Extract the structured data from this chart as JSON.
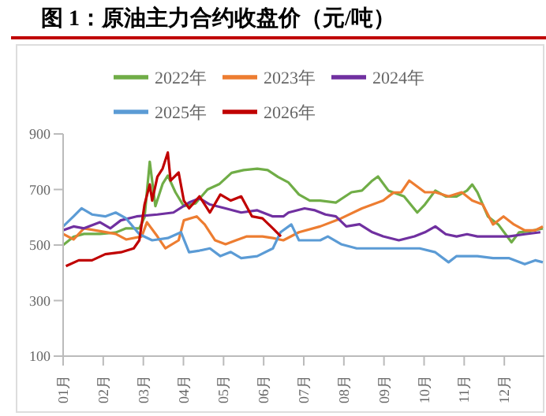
{
  "chart_data": {
    "type": "line",
    "title": "图 1：原油主力合约收盘价（元/吨）",
    "xlim": [
      1,
      13
    ],
    "xticks": [
      {
        "value": 1,
        "label": "01月"
      },
      {
        "value": 2,
        "label": "02月"
      },
      {
        "value": 3,
        "label": "03月"
      },
      {
        "value": 4,
        "label": "04月"
      },
      {
        "value": 5,
        "label": "05月"
      },
      {
        "value": 6,
        "label": "06月"
      },
      {
        "value": 7,
        "label": "07月"
      },
      {
        "value": 8,
        "label": "08月"
      },
      {
        "value": 9,
        "label": "09月"
      },
      {
        "value": 10,
        "label": "10月"
      },
      {
        "value": 11,
        "label": "11月"
      },
      {
        "value": 12,
        "label": "12月"
      }
    ],
    "ylim": [
      100,
      900
    ],
    "yticks": [
      100,
      300,
      500,
      700,
      900
    ],
    "legend": "top",
    "series": [
      {
        "name": "2022年",
        "color": "#70ad47",
        "x": [
          1.0,
          1.26,
          1.52,
          1.92,
          2.31,
          2.57,
          2.9,
          3.03,
          3.16,
          3.3,
          3.48,
          3.61,
          3.8,
          4.01,
          4.3,
          4.6,
          4.9,
          5.2,
          5.5,
          5.84,
          6.1,
          6.36,
          6.62,
          6.88,
          7.15,
          7.41,
          7.8,
          8.19,
          8.45,
          8.71,
          8.85,
          9.11,
          9.5,
          9.83,
          10.02,
          10.28,
          10.54,
          10.81,
          11.07,
          11.2,
          11.33,
          11.59,
          11.85,
          12.18,
          12.37,
          12.64,
          12.96
        ],
        "values": [
          500,
          530,
          540,
          540,
          545,
          560,
          560,
          600,
          800,
          640,
          720,
          750,
          690,
          640,
          650,
          700,
          720,
          760,
          770,
          775,
          770,
          745,
          725,
          682,
          660,
          660,
          653,
          690,
          696,
          732,
          747,
          696,
          675,
          617,
          646,
          696,
          675,
          675,
          696,
          718,
          690,
          603,
          574,
          510,
          546,
          550,
          560
        ]
      },
      {
        "name": "2023年",
        "color": "#ed7d31",
        "x": [
          1.0,
          1.26,
          1.52,
          1.92,
          2.31,
          2.57,
          2.96,
          3.09,
          3.35,
          3.55,
          3.88,
          4.01,
          4.33,
          4.53,
          4.79,
          5.05,
          5.31,
          5.58,
          5.97,
          6.23,
          6.49,
          6.88,
          7.41,
          7.93,
          8.45,
          8.98,
          9.24,
          9.43,
          9.63,
          10.02,
          10.28,
          10.61,
          10.94,
          11.2,
          11.46,
          11.72,
          11.98,
          12.24,
          12.51,
          12.77,
          12.96
        ],
        "values": [
          540,
          520,
          560,
          550,
          540,
          520,
          531,
          582,
          531,
          488,
          517,
          589,
          603,
          574,
          517,
          503,
          517,
          531,
          531,
          525,
          517,
          546,
          567,
          596,
          632,
          660,
          689,
          690,
          732,
          690,
          690,
          675,
          690,
          660,
          646,
          574,
          603,
          574,
          553,
          553,
          567
        ]
      },
      {
        "name": "2024年",
        "color": "#7030a0",
        "x": [
          1.0,
          1.26,
          1.52,
          1.92,
          2.18,
          2.44,
          2.83,
          3.35,
          3.75,
          4.14,
          4.4,
          4.66,
          5.05,
          5.44,
          5.84,
          6.23,
          6.49,
          6.62,
          7.02,
          7.28,
          7.54,
          7.8,
          8.06,
          8.39,
          8.71,
          8.98,
          9.37,
          9.76,
          10.02,
          10.28,
          10.54,
          10.81,
          11.07,
          11.33,
          11.72,
          12.11,
          12.51,
          12.9
        ],
        "values": [
          553,
          567,
          560,
          582,
          560,
          589,
          603,
          610,
          617,
          653,
          668,
          646,
          632,
          617,
          625,
          603,
          603,
          617,
          632,
          625,
          610,
          603,
          567,
          575,
          546,
          531,
          517,
          531,
          546,
          567,
          539,
          531,
          539,
          531,
          531,
          531,
          539,
          546
        ]
      },
      {
        "name": "2025年",
        "color": "#5b9bd5",
        "x": [
          1.0,
          1.26,
          1.46,
          1.72,
          2.05,
          2.31,
          2.57,
          2.9,
          3.22,
          3.61,
          3.94,
          4.14,
          4.4,
          4.66,
          4.92,
          5.18,
          5.44,
          5.84,
          6.23,
          6.42,
          6.69,
          6.88,
          7.41,
          7.6,
          7.93,
          8.32,
          8.71,
          9.11,
          9.5,
          9.89,
          10.28,
          10.61,
          10.81,
          11.33,
          11.72,
          12.11,
          12.51,
          12.77,
          12.96
        ],
        "values": [
          567,
          603,
          632,
          610,
          603,
          617,
          596,
          539,
          517,
          525,
          546,
          474,
          480,
          488,
          460,
          475,
          453,
          460,
          488,
          546,
          574,
          517,
          517,
          531,
          503,
          488,
          488,
          488,
          488,
          488,
          474,
          438,
          460,
          460,
          453,
          453,
          431,
          445,
          438
        ]
      },
      {
        "name": "2026年",
        "color": "#c00000",
        "x": [
          1.07,
          1.39,
          1.72,
          2.05,
          2.44,
          2.76,
          2.9,
          3.03,
          3.16,
          3.22,
          3.35,
          3.48,
          3.61,
          3.68,
          3.88,
          4.01,
          4.14,
          4.4,
          4.66,
          4.92,
          5.18,
          5.44,
          5.71,
          5.97,
          6.23,
          6.43
        ],
        "values": [
          424,
          445,
          445,
          467,
          474,
          488,
          517,
          646,
          718,
          660,
          746,
          775,
          833,
          732,
          761,
          660,
          632,
          675,
          617,
          682,
          660,
          675,
          603,
          596,
          560,
          531
        ]
      }
    ]
  }
}
